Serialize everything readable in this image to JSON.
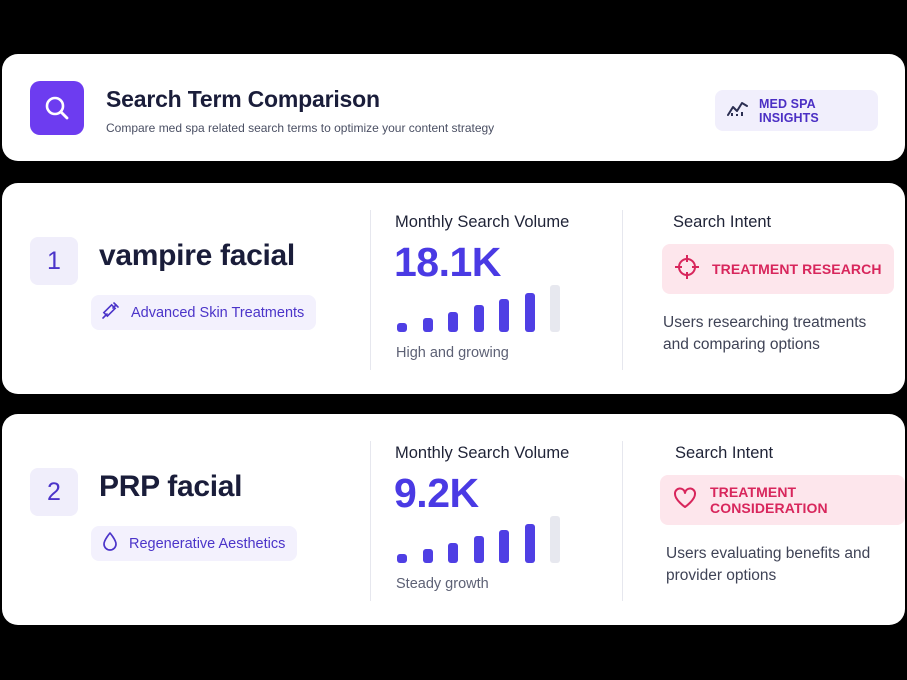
{
  "header": {
    "title": "Search Term Comparison",
    "subtitle": "Compare med spa related search terms to optimize your content strategy",
    "badge_label": "MED SPA INSIGHTS",
    "icon": "search-icon",
    "badge_icon": "trend-chart-icon"
  },
  "colors": {
    "accent": "#6d3cf0",
    "volume": "#4a3ae4",
    "intent": "#d8265c",
    "bar_empty": "#e7e8ef"
  },
  "terms": [
    {
      "rank": "1",
      "name": "vampire facial",
      "category": "Advanced Skin Treatments",
      "category_icon": "syringe-icon",
      "volume_title": "Monthly Search Volume",
      "volume": "18.1K",
      "trend_levels": [
        0.2,
        0.3,
        0.42,
        0.58,
        0.7,
        0.84,
        1.0
      ],
      "trend_filled": 6,
      "volume_note": "High and growing",
      "intent_title": "Search Intent",
      "intent": "TREATMENT RESEARCH",
      "intent_icon": "crosshair-icon",
      "intent_desc": "Users researching treatments and comparing options"
    },
    {
      "rank": "2",
      "name": "PRP facial",
      "category": "Regenerative Aesthetics",
      "category_icon": "droplet-icon",
      "volume_title": "Monthly Search Volume",
      "volume": "9.2K",
      "trend_levels": [
        0.2,
        0.3,
        0.42,
        0.58,
        0.7,
        0.84,
        1.0
      ],
      "trend_filled": 6,
      "volume_note": "Steady growth",
      "intent_title": "Search Intent",
      "intent": "TREATMENT CONSIDERATION",
      "intent_icon": "heart-icon",
      "intent_desc": "Users evaluating benefits and provider options"
    }
  ]
}
